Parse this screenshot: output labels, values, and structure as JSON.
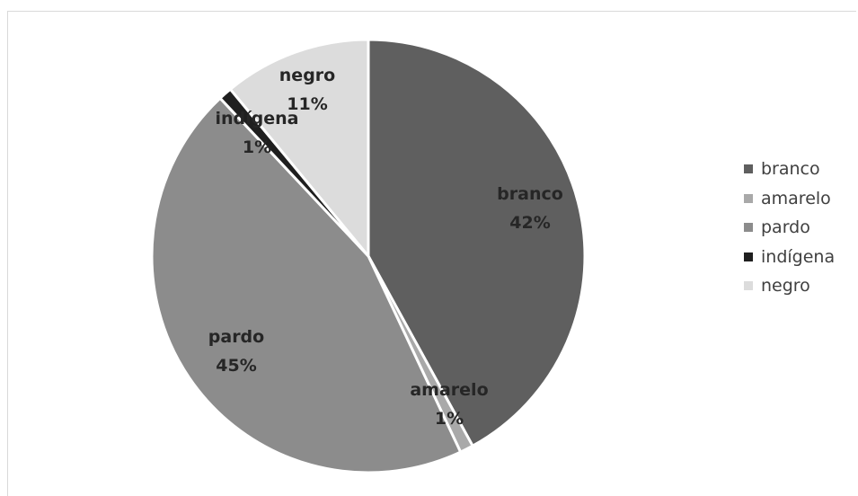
{
  "chart_data": {
    "type": "pie",
    "title": "",
    "series": [
      {
        "label": "branco",
        "value": 42,
        "color": "#5f5f5f"
      },
      {
        "label": "amarelo",
        "value": 1,
        "color": "#a9a9a9"
      },
      {
        "label": "pardo",
        "value": 45,
        "color": "#8c8c8c"
      },
      {
        "label": "indígena",
        "value": 1,
        "color": "#1f1f1f"
      },
      {
        "label": "negro",
        "value": 11,
        "color": "#dcdcdc"
      }
    ],
    "data_labels": [
      "42%",
      "1%",
      "45%",
      "1%",
      "11%"
    ],
    "legend_position": "right"
  }
}
